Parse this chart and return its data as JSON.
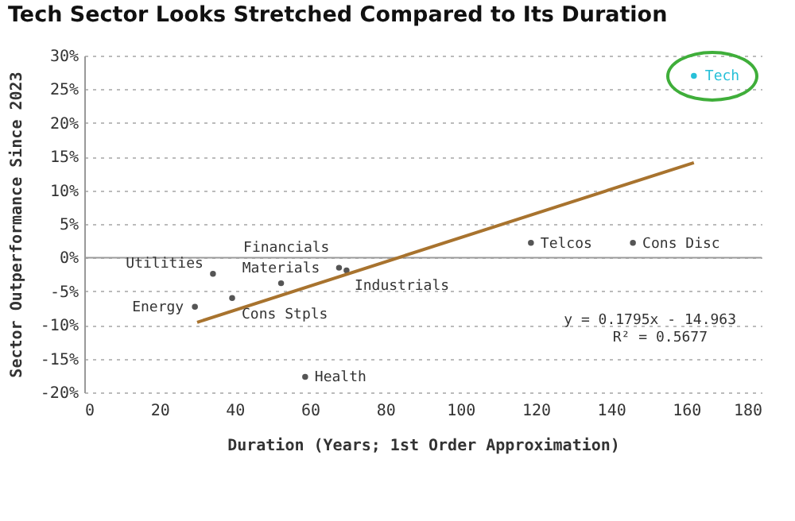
{
  "chart_data": {
    "type": "scatter",
    "title": "Tech Sector Looks Stretched Compared to Its Duration",
    "xlabel": "Duration (Years; 1st Order Approximation)",
    "ylabel": "Sector Outperformance Since 2023",
    "xlim": [
      0,
      180
    ],
    "xticks": [
      0,
      20,
      40,
      60,
      80,
      100,
      120,
      140,
      160,
      180
    ],
    "ylim": [
      -20,
      30
    ],
    "yticks": [
      {
        "value": -20,
        "label": "-20%"
      },
      {
        "value": -15,
        "label": "-15%"
      },
      {
        "value": -10,
        "label": "-10%"
      },
      {
        "value": -5,
        "label": "-5%"
      },
      {
        "value": 0,
        "label": "0%"
      },
      {
        "value": 5,
        "label": "5%"
      },
      {
        "value": 10,
        "label": "10%"
      },
      {
        "value": 15,
        "label": "15%"
      },
      {
        "value": 20,
        "label": "20%"
      },
      {
        "value": 25,
        "label": "25%"
      },
      {
        "value": 30,
        "label": "30%"
      }
    ],
    "grid": "y",
    "ref_lines": [
      {
        "axis": "y",
        "value": 0,
        "color": "#9a9a9a"
      }
    ],
    "series": [
      {
        "marker": "circle",
        "x": [
          162,
          29.4,
          34.2,
          39.3,
          52.3,
          67.7,
          69.7,
          58.7,
          118.7,
          145.8
        ],
        "values": [
          27,
          -7.3,
          -2.4,
          -6,
          -3.8,
          -1.5,
          -1.9,
          -17.7,
          2.2,
          2.2
        ],
        "colors": [
          "#27c0d8",
          "#555555",
          "#555555",
          "#555555",
          "#555555",
          "#555555",
          "#555555",
          "#555555",
          "#555555",
          "#555555"
        ]
      },
      {
        "type": "line",
        "x": [
          30,
          162
        ],
        "values": [
          -9.6,
          14.1
        ],
        "color": "#a8732e"
      }
    ],
    "annotations": [
      {
        "text": "Tech",
        "x": 162,
        "y": 27
      },
      {
        "text": "Energy",
        "x": 29.4,
        "y": -7.3
      },
      {
        "text": "Utilities",
        "x": 34.2,
        "y": -2.4
      },
      {
        "text": "Cons Stpls",
        "x": 39.3,
        "y": -6
      },
      {
        "text": "Materials",
        "x": 52.3,
        "y": -3.8
      },
      {
        "text": "Financials",
        "x": 67.7,
        "y": -1.5
      },
      {
        "text": "Industrials",
        "x": 69.7,
        "y": -1.9
      },
      {
        "text": "Health",
        "x": 58.7,
        "y": -17.7
      },
      {
        "text": "Telcos",
        "x": 118.7,
        "y": 2.2
      },
      {
        "text": "Cons Disc",
        "x": 145.8,
        "y": 2.2
      },
      "y = 0.1795x - 14.963",
      "R² = 0.5677"
    ]
  }
}
